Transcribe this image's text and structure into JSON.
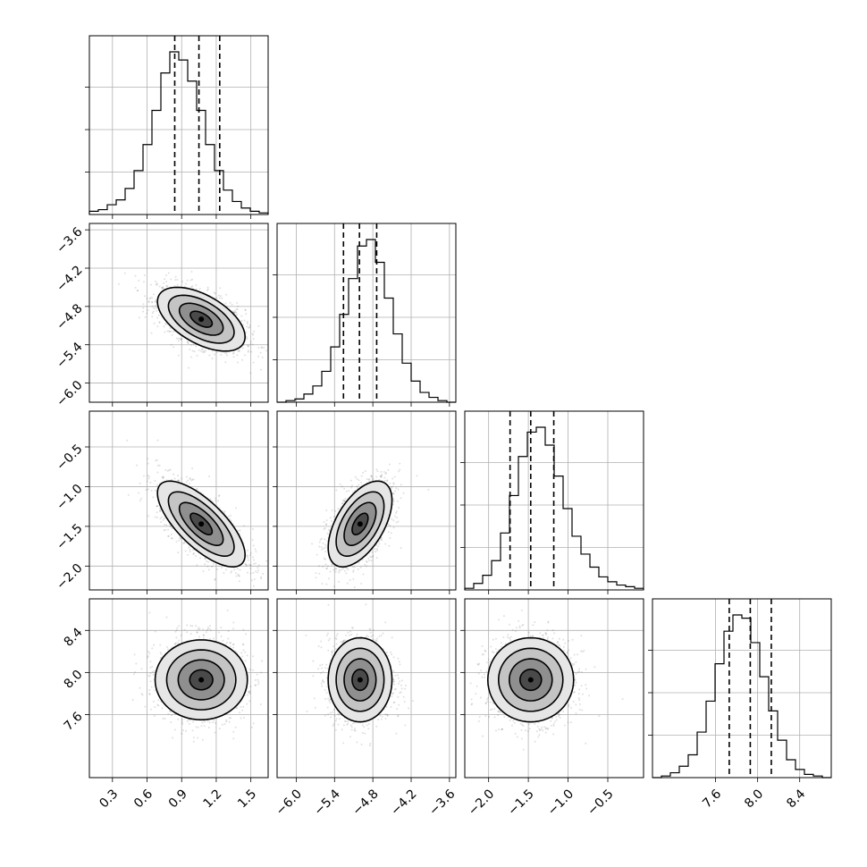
{
  "chart_data": {
    "type": "corner",
    "n_params": 4,
    "params": [
      {
        "mean": 1.07,
        "sd": 0.19,
        "range": [
          0.1,
          1.65
        ],
        "ticks": [
          0.3,
          0.6,
          0.9,
          1.2,
          1.5
        ],
        "tick_labels": [
          "0.3",
          "0.6",
          "0.9",
          "1.2",
          "1.5"
        ],
        "quantiles": [
          0.84,
          1.05,
          1.23
        ],
        "hist_edges_start": 0.1,
        "hist_bin_width": 0.0775,
        "hist_counts": [
          2,
          3,
          6,
          9,
          16,
          27,
          43,
          64,
          87,
          100,
          95,
          82,
          64,
          43,
          27,
          15,
          8,
          4,
          2,
          1
        ]
      },
      {
        "mean": -5.0,
        "sd": 0.25,
        "range": [
          -6.3,
          -3.5
        ],
        "ticks": [
          -6.0,
          -5.4,
          -4.8,
          -4.2,
          -3.6
        ],
        "tick_labels": [
          "−6.0",
          "−5.4",
          "−4.8",
          "−4.2",
          "−3.6"
        ],
        "quantiles": [
          -5.26,
          -5.01,
          -4.74
        ],
        "hist_edges_start": -6.3,
        "hist_bin_width": 0.14,
        "hist_counts": [
          0,
          1,
          2,
          5,
          10,
          19,
          34,
          54,
          76,
          96,
          100,
          86,
          64,
          42,
          24,
          13,
          6,
          3,
          1,
          0
        ]
      },
      {
        "mean": -1.47,
        "sd": 0.27,
        "range": [
          -2.3,
          -0.05
        ],
        "ticks": [
          -2.0,
          -1.5,
          -1.0,
          -0.5
        ],
        "tick_labels": [
          "−2.0",
          "−1.5",
          "−1.0",
          "−0.5"
        ],
        "quantiles": [
          -1.73,
          -1.47,
          -1.18
        ],
        "hist_edges_start": -2.3,
        "hist_bin_width": 0.1125,
        "hist_counts": [
          1,
          4,
          9,
          18,
          35,
          58,
          82,
          97,
          100,
          89,
          70,
          50,
          33,
          22,
          14,
          8,
          5,
          3,
          2,
          1
        ]
      },
      {
        "mean": 7.93,
        "sd": 0.2,
        "range": [
          7.0,
          8.7
        ],
        "ticks": [
          7.6,
          8.0,
          8.4
        ],
        "tick_labels": [
          "7.6",
          "8.0",
          "8.4"
        ],
        "quantiles": [
          7.73,
          7.93,
          8.13
        ],
        "hist_edges_start": 7.0,
        "hist_bin_width": 0.085,
        "hist_counts": [
          0,
          1,
          3,
          7,
          14,
          28,
          47,
          70,
          90,
          100,
          98,
          83,
          62,
          41,
          23,
          11,
          5,
          2,
          1,
          0
        ]
      }
    ],
    "correlations": {
      "1_0": -0.55,
      "2_0": -0.72,
      "2_1": 0.55,
      "3_0": 0.0,
      "3_1": 0.0,
      "3_2": 0.0
    },
    "contour_levels_sigma": [
      0.5,
      1.0,
      1.5,
      2.0
    ],
    "grid": true,
    "xlabel": "",
    "ylabel": "",
    "title": ""
  }
}
